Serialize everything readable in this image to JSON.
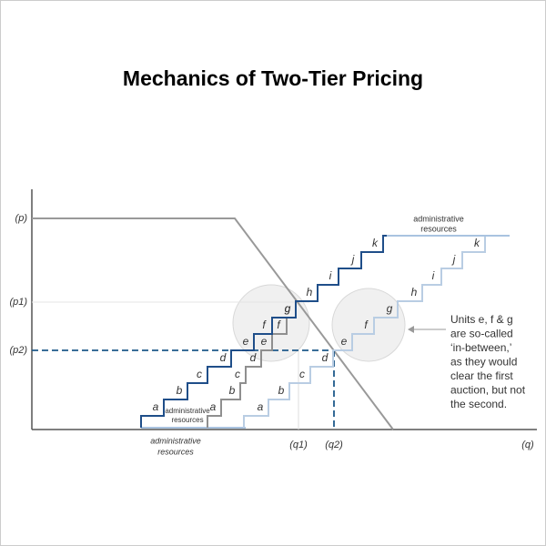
{
  "header": {
    "title": "Mechanics of Two-Tier Pricing"
  },
  "axes": {
    "y_labels": [
      "(p)",
      "(p1)",
      "(p2)"
    ],
    "x_labels": [
      "(q1)",
      "(q2)",
      "(q)"
    ]
  },
  "staircases": {
    "first_auction": [
      "a",
      "b",
      "c",
      "d",
      "e",
      "f",
      "g",
      "h",
      "i",
      "j",
      "k"
    ],
    "in_between": [
      "a",
      "b",
      "c",
      "d",
      "e",
      "f",
      "g"
    ],
    "second_auction": [
      "a",
      "b",
      "c",
      "d",
      "e",
      "f",
      "g",
      "h",
      "i",
      "j",
      "k"
    ]
  },
  "labels": {
    "top_admin": [
      "administrative",
      "resources"
    ],
    "inner_admin": [
      "administrative",
      "resources"
    ],
    "bottom_admin": [
      "administrative",
      "resources"
    ]
  },
  "annotation": [
    "Units e, f & g",
    "are so-called",
    "‘in-between,’",
    "as they would",
    "clear the first",
    "auction, but not",
    "the second."
  ]
}
